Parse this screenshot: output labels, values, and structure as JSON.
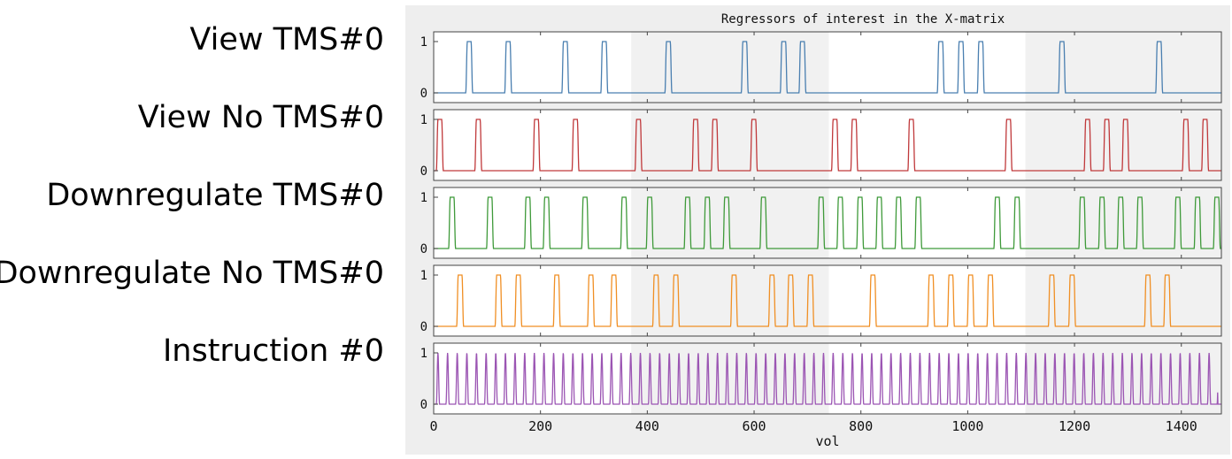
{
  "row_labels": [
    "View TMS#0",
    "View No TMS#0",
    "Downregulate TMS#0",
    "Downregulate No TMS#0",
    "Instruction #0"
  ],
  "chart_data": {
    "type": "line",
    "title": "Regressors of interest in the X-matrix",
    "xlabel": "vol",
    "xlim": [
      0,
      1475
    ],
    "xticks": [
      0,
      200,
      400,
      600,
      800,
      1000,
      1200,
      1400
    ],
    "ylim": [
      0,
      1
    ],
    "yticks": [
      0,
      1
    ],
    "shaded_runs": [
      [
        370,
        740
      ],
      [
        1108,
        1475
      ]
    ],
    "series": [
      {
        "color": "#4a7fb0",
        "onsets": [
          60,
          133,
          240,
          313,
          433,
          576,
          649,
          684,
          943,
          981,
          1018,
          1170,
          1352
        ]
      },
      {
        "color": "#c0393b",
        "onsets": [
          5,
          77,
          186,
          259,
          377,
          484,
          520,
          593,
          745,
          781,
          888,
          1070,
          1218,
          1254,
          1289,
          1402,
          1438
        ]
      },
      {
        "color": "#3f9a3a",
        "onsets": [
          28,
          99,
          170,
          205,
          277,
          350,
          398,
          469,
          506,
          542,
          611,
          719,
          755,
          792,
          828,
          864,
          901,
          1049,
          1086,
          1208,
          1245,
          1280,
          1316,
          1387,
          1424,
          1460
        ]
      },
      {
        "color": "#f08f24",
        "onsets": [
          43,
          115,
          152,
          224,
          288,
          331,
          410,
          447,
          556,
          627,
          662,
          699,
          816,
          925,
          962,
          999,
          1036,
          1151,
          1189,
          1331,
          1367
        ]
      },
      {
        "color": "#9b55b3",
        "period": 18.05,
        "start": 5,
        "end": 1462
      }
    ]
  }
}
